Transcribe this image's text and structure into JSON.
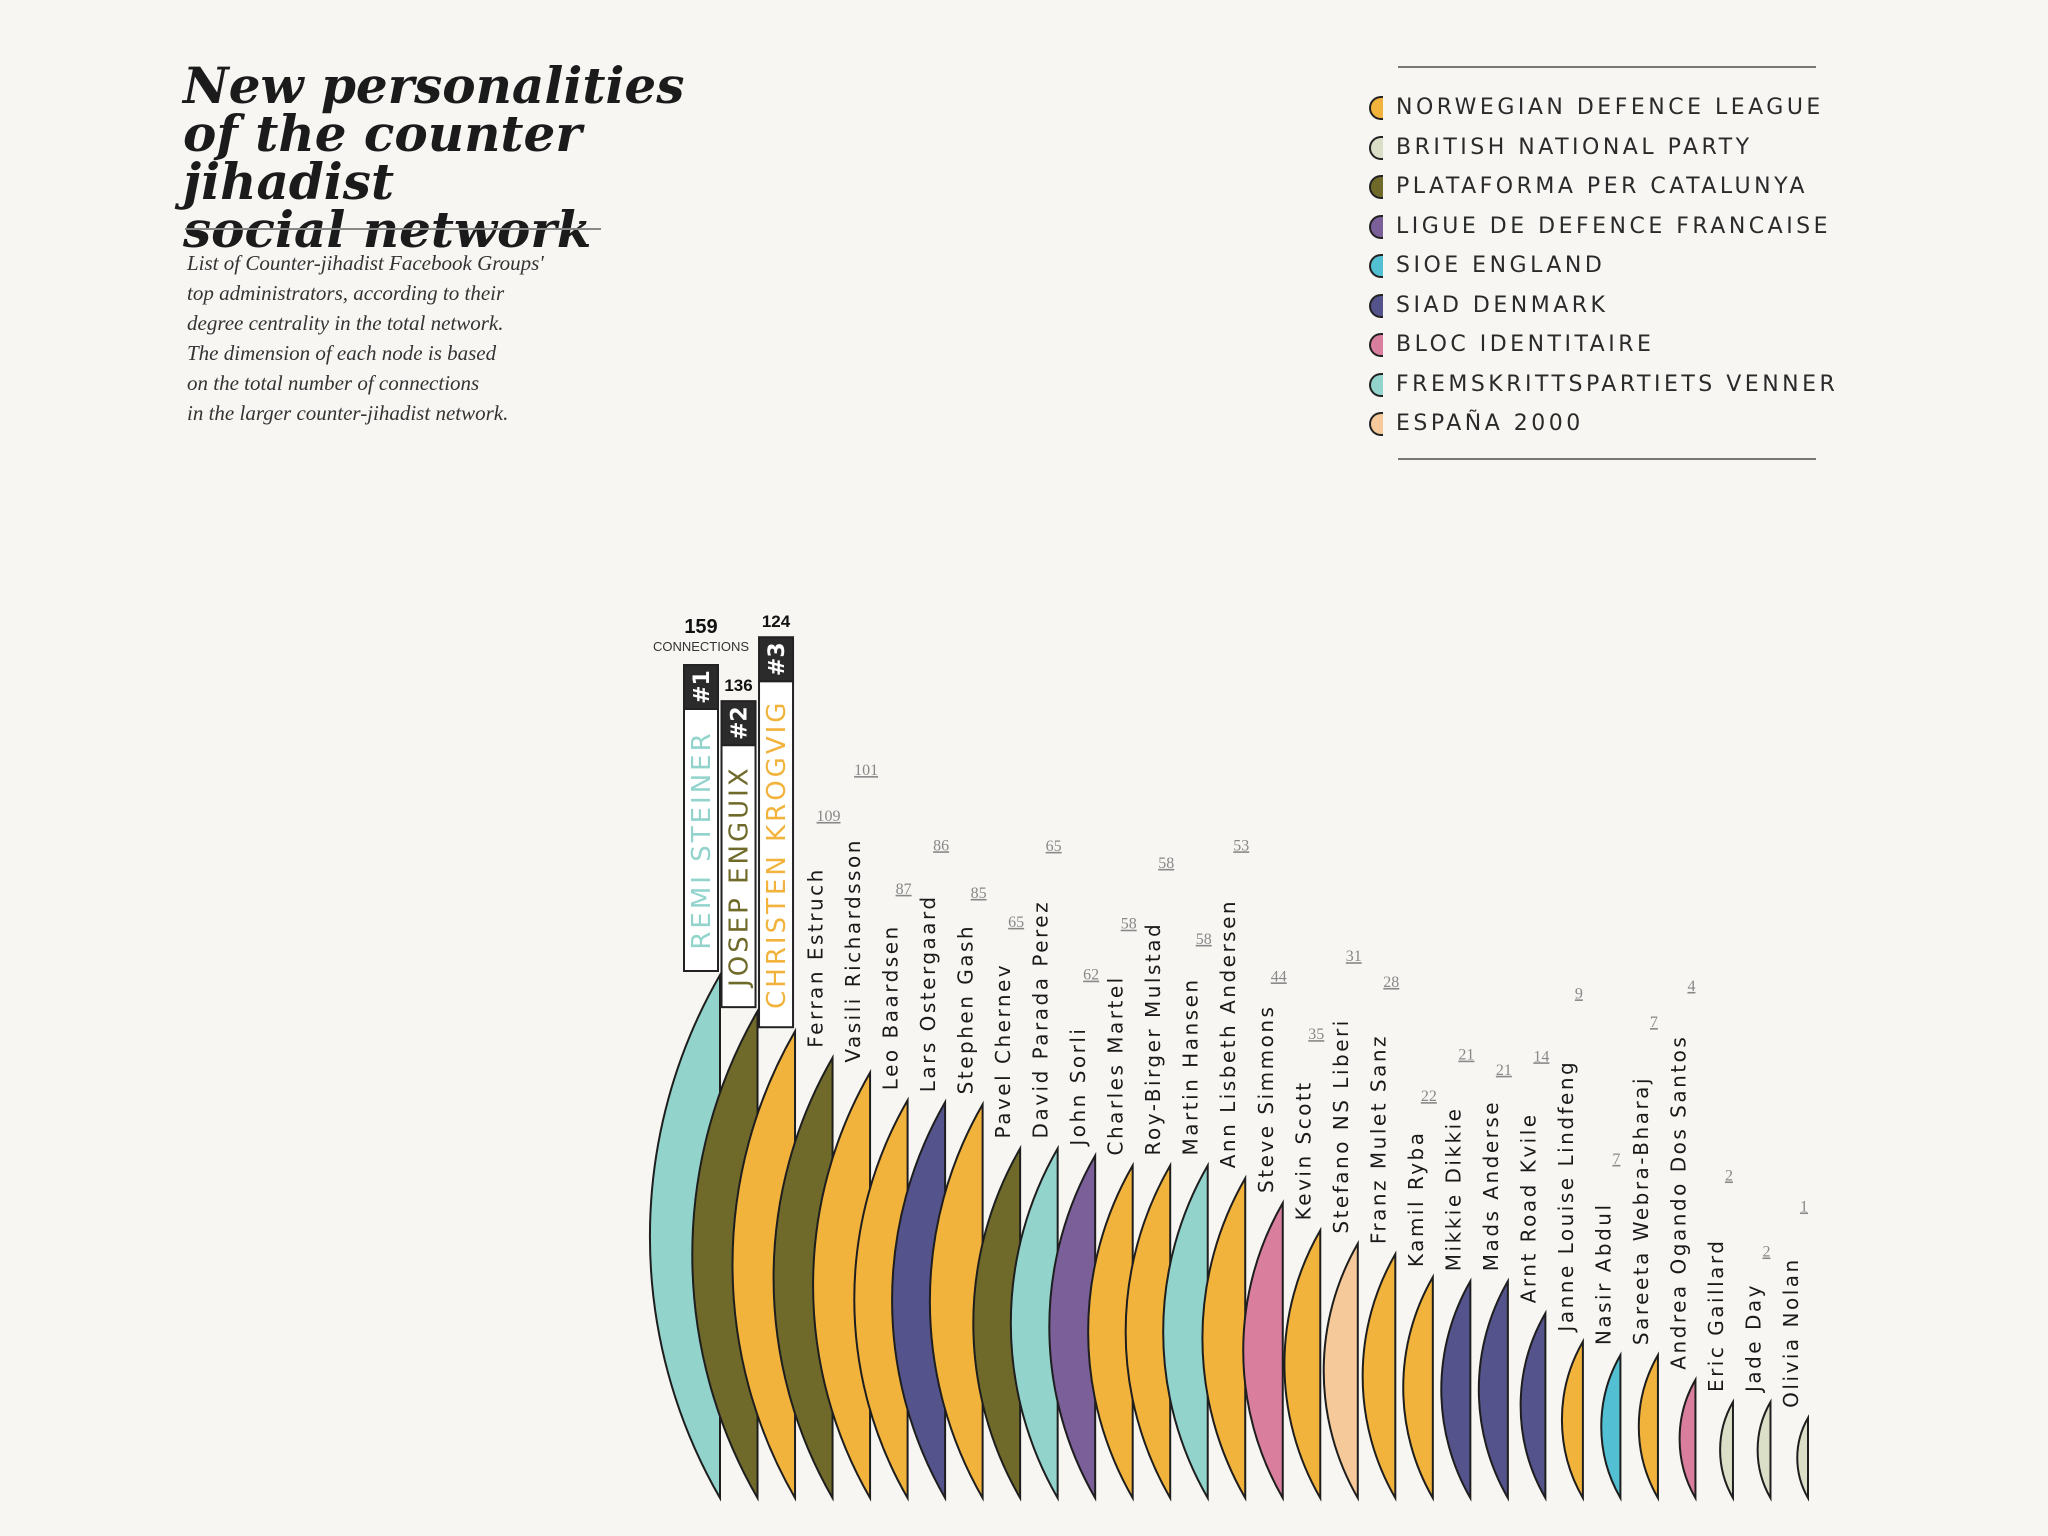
{
  "title": {
    "line1": "New personalities",
    "line2": "of the counter jihadist",
    "line3": "social network"
  },
  "description": {
    "line1": "List of Counter-jihadist Facebook Groups'",
    "line2": "top administrators, according to their",
    "line3": "degree centrality in the total network.",
    "line4": "The dimension of each node is based",
    "line5": "on the total number of connections",
    "line6": "in the larger counter-jihadist network."
  },
  "legend": [
    {
      "label": "NORWEGIAN DEFENCE LEAGUE",
      "color": "#f2b33d"
    },
    {
      "label": "BRITISH NATIONAL PARTY",
      "color": "#dcdfc8"
    },
    {
      "label": "PLATAFORMA PER CATALUNYA",
      "color": "#6f6a2a"
    },
    {
      "label": "LIGUE DE DEFENCE FRANCAISE",
      "color": "#7a5f99"
    },
    {
      "label": "SIOE ENGLAND",
      "color": "#52bfd2"
    },
    {
      "label": "SIAD DENMARK",
      "color": "#54538c"
    },
    {
      "label": "BLOC IDENTITAIRE",
      "color": "#d97f9d"
    },
    {
      "label": "FREMSKRITTSPARTIETS VENNER",
      "color": "#92d3cc"
    },
    {
      "label": "ESPAÑA 2000",
      "color": "#f5c99a"
    }
  ],
  "chart_data": {
    "type": "semicircle-nodes",
    "value_label": "CONNECTIONS",
    "items": [
      {
        "name": "REMI STEINER",
        "value": 159,
        "rank": "#1",
        "group": "FREMSKRITTSPARTIETS VENNER"
      },
      {
        "name": "JOSEP ENGUIX",
        "value": 136,
        "rank": "#2",
        "group": "PLATAFORMA PER CATALUNYA"
      },
      {
        "name": "CHRISTEN KROGVIG",
        "value": 124,
        "rank": "#3",
        "group": "NORWEGIAN DEFENCE LEAGUE"
      },
      {
        "name": "Ferran Estruch",
        "value": 109,
        "group": "PLATAFORMA PER CATALUNYA"
      },
      {
        "name": "Vasili Richardsson",
        "value": 101,
        "group": "NORWEGIAN DEFENCE LEAGUE"
      },
      {
        "name": "Leo Baardsen",
        "value": 87,
        "group": "NORWEGIAN DEFENCE LEAGUE"
      },
      {
        "name": "Lars Ostergaard",
        "value": 86,
        "group": "SIAD DENMARK"
      },
      {
        "name": "Stephen Gash",
        "value": 85,
        "group": "NORWEGIAN DEFENCE LEAGUE"
      },
      {
        "name": "Pavel Chernev",
        "value": 65,
        "group": "PLATAFORMA PER CATALUNYA"
      },
      {
        "name": "David Parada Perez",
        "value": 65,
        "group": "FREMSKRITTSPARTIETS VENNER"
      },
      {
        "name": "John Sorli",
        "value": 62,
        "group": "LIGUE DE DEFENCE FRANCAISE"
      },
      {
        "name": "Charles Martel",
        "value": 58,
        "group": "NORWEGIAN DEFENCE LEAGUE"
      },
      {
        "name": "Roy-Birger Mulstad",
        "value": 58,
        "group": "NORWEGIAN DEFENCE LEAGUE"
      },
      {
        "name": "Martin Hansen",
        "value": 58,
        "group": "FREMSKRITTSPARTIETS VENNER"
      },
      {
        "name": "Ann Lisbeth Andersen",
        "value": 53,
        "group": "NORWEGIAN DEFENCE LEAGUE"
      },
      {
        "name": "Steve Simmons",
        "value": 44,
        "group": "BLOC IDENTITAIRE"
      },
      {
        "name": "Kevin Scott",
        "value": 35,
        "group": "NORWEGIAN DEFENCE LEAGUE"
      },
      {
        "name": "Stefano NS Liberi",
        "value": 31,
        "group": "ESPAÑA 2000"
      },
      {
        "name": "Franz Mulet Sanz",
        "value": 28,
        "group": "NORWEGIAN DEFENCE LEAGUE"
      },
      {
        "name": "Kamil Ryba",
        "value": 22,
        "group": "NORWEGIAN DEFENCE LEAGUE"
      },
      {
        "name": "Mikkie Dikkie",
        "value": 21,
        "group": "SIAD DENMARK"
      },
      {
        "name": "Mads Anderse",
        "value": 21,
        "group": "SIAD DENMARK"
      },
      {
        "name": "Arnt Road Kvile",
        "value": 14,
        "group": "SIAD DENMARK"
      },
      {
        "name": "Janne Louise Lindfeng",
        "value": 9,
        "group": "NORWEGIAN DEFENCE LEAGUE"
      },
      {
        "name": "Nasir Abdul",
        "value": 7,
        "group": "SIOE ENGLAND"
      },
      {
        "name": "Sareeta Webra-Bharaj",
        "value": 7,
        "group": "NORWEGIAN DEFENCE LEAGUE"
      },
      {
        "name": "Andrea Ogando Dos Santos",
        "value": 4,
        "group": "BLOC IDENTITAIRE"
      },
      {
        "name": "Eric Gaillard",
        "value": 2,
        "group": "BRITISH NATIONAL PARTY"
      },
      {
        "name": "Jade Day",
        "value": 2,
        "group": "BRITISH NATIONAL PARTY"
      },
      {
        "name": "Olivia Nolan",
        "value": 1,
        "group": "BRITISH NATIONAL PARTY"
      }
    ]
  }
}
